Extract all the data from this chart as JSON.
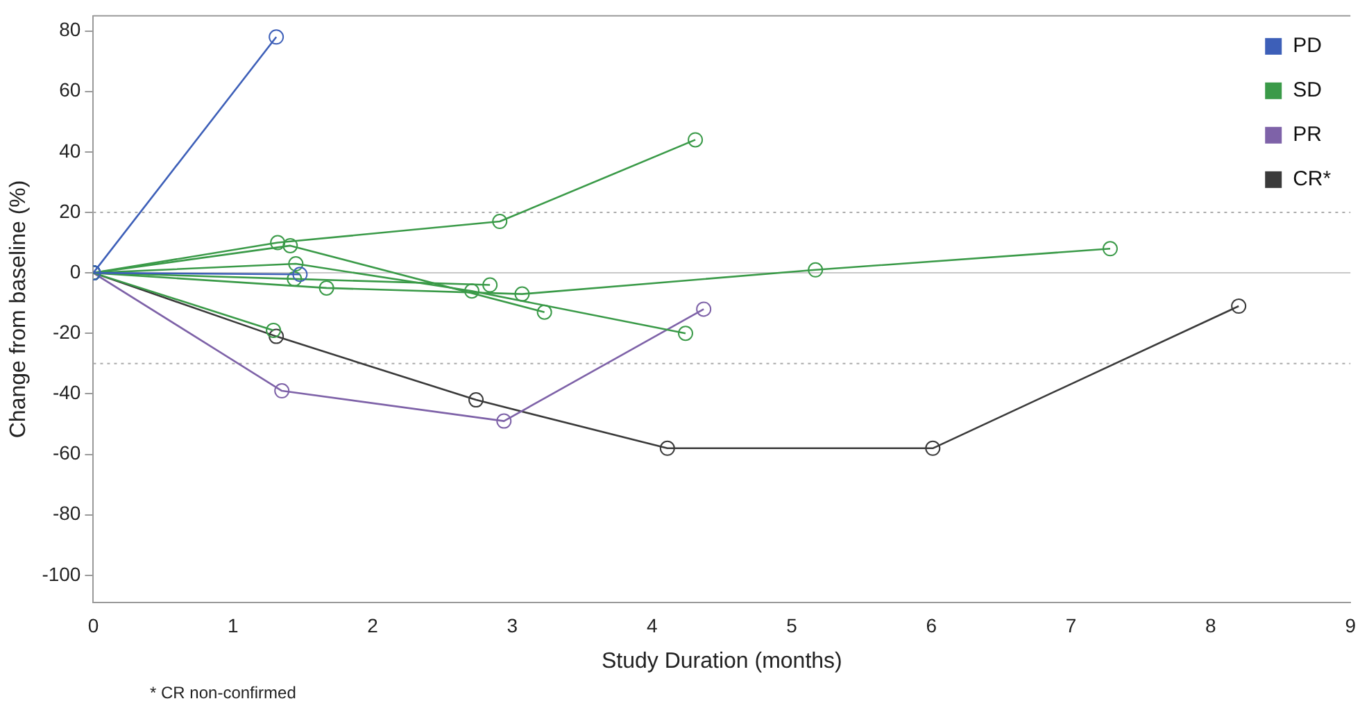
{
  "chart_data": {
    "type": "line",
    "xlabel": "Study Duration (months)",
    "ylabel": "Change from baseline (%)",
    "xlim": [
      0,
      9
    ],
    "xticks": [
      0,
      1,
      2,
      3,
      4,
      5,
      6,
      7,
      8,
      9
    ],
    "ylim": [
      -109,
      85
    ],
    "yticks": [
      -100,
      -80,
      -60,
      -40,
      -20,
      0,
      20,
      40,
      60,
      80
    ],
    "grid": false,
    "legend": "top right",
    "marker": "circle",
    "line_style": "solid",
    "ref_lines": [
      {
        "axis": "y",
        "value": 20,
        "color": "#aaaaaa",
        "line_style": "dotted"
      },
      {
        "axis": "y",
        "value": -30,
        "color": "#aaaaaa",
        "line_style": "dotted"
      },
      {
        "axis": "y",
        "value": 0,
        "color": "#c8c8c8",
        "line_style": "solid"
      }
    ],
    "annotations": [
      "* CR non-confirmed"
    ],
    "series": [
      {
        "name": "PD",
        "color": "#3d5fb8",
        "x": [
          0,
          1.31
        ],
        "values": [
          0,
          78
        ]
      },
      {
        "color": "#3d5fb8",
        "x": [
          0,
          1.48
        ],
        "values": [
          0,
          -0.5
        ]
      },
      {
        "name": "SD",
        "color": "#3a9a48",
        "x": [
          0,
          1.32,
          2.91,
          4.31
        ],
        "values": [
          0,
          10,
          17,
          44
        ]
      },
      {
        "color": "#3a9a48",
        "x": [
          0,
          1.41,
          3.23
        ],
        "values": [
          0,
          9,
          -13
        ]
      },
      {
        "color": "#3a9a48",
        "x": [
          0,
          1.45,
          2.71,
          4.24
        ],
        "values": [
          0,
          3,
          -6,
          -20
        ]
      },
      {
        "color": "#3a9a48",
        "x": [
          0,
          1.44,
          2.84
        ],
        "values": [
          0,
          -2,
          -4
        ]
      },
      {
        "color": "#3a9a48",
        "x": [
          0,
          1.67,
          3.07,
          5.17,
          7.28
        ],
        "values": [
          0,
          -5,
          -7,
          1,
          8
        ]
      },
      {
        "color": "#3a9a48",
        "x": [
          0,
          1.29
        ],
        "values": [
          0,
          -19
        ]
      },
      {
        "name": "PR",
        "color": "#7e62a8",
        "x": [
          0,
          1.35,
          2.94,
          4.37
        ],
        "values": [
          0,
          -39,
          -49,
          -12
        ]
      },
      {
        "name": "CR*",
        "color": "#3a3a3a",
        "x": [
          0,
          1.31,
          2.74,
          4.11,
          6.01,
          8.2
        ],
        "values": [
          0,
          -21,
          -42,
          -58,
          -58,
          -11
        ]
      }
    ]
  }
}
